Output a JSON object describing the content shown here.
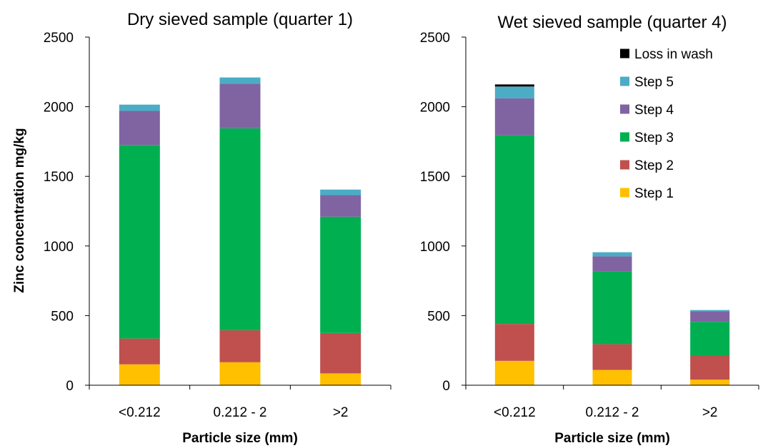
{
  "y_axis_label": "Zinc concentration mg/kg",
  "colors": {
    "Step 1": "#ffc000",
    "Step 2": "#c0504d",
    "Step 3": "#00b050",
    "Step 4": "#8064a2",
    "Step 5": "#4bacc6",
    "Loss in wash": "#000000"
  },
  "chart_data": [
    {
      "type": "bar",
      "stacked": true,
      "title": "Dry sieved sample (quarter 1)",
      "xlabel": "Particle size (mm)",
      "ylabel": "Zinc concentration mg/kg",
      "ylim": [
        0,
        2500
      ],
      "yticks": [
        0,
        500,
        1000,
        1500,
        2000,
        2500
      ],
      "categories": [
        "<0.212",
        "0.212 - 2",
        ">2"
      ],
      "series": [
        {
          "name": "Step 1",
          "values": [
            150,
            165,
            85
          ]
        },
        {
          "name": "Step 2",
          "values": [
            185,
            230,
            290
          ]
        },
        {
          "name": "Step 3",
          "values": [
            1390,
            1450,
            835
          ]
        },
        {
          "name": "Step 4",
          "values": [
            245,
            320,
            155
          ]
        },
        {
          "name": "Step 5",
          "values": [
            45,
            45,
            40
          ]
        }
      ]
    },
    {
      "type": "bar",
      "stacked": true,
      "title": "Wet sieved sample (quarter 4)",
      "xlabel": "Particle size (mm)",
      "ylabel": "",
      "ylim": [
        0,
        2500
      ],
      "yticks": [
        0,
        500,
        1000,
        1500,
        2000,
        2500
      ],
      "categories": [
        "<0.212",
        "0.212 - 2",
        ">2"
      ],
      "series": [
        {
          "name": "Step 1",
          "values": [
            175,
            110,
            40
          ]
        },
        {
          "name": "Step 2",
          "values": [
            265,
            185,
            170
          ]
        },
        {
          "name": "Step 3",
          "values": [
            1355,
            520,
            245
          ]
        },
        {
          "name": "Step 4",
          "values": [
            265,
            110,
            75
          ]
        },
        {
          "name": "Step 5",
          "values": [
            85,
            30,
            10
          ]
        },
        {
          "name": "Loss in wash",
          "values": [
            15,
            0,
            0
          ]
        }
      ],
      "legend": {
        "position": "top-right",
        "order": [
          "Loss in wash",
          "Step 5",
          "Step 4",
          "Step 3",
          "Step 2",
          "Step 1"
        ]
      }
    }
  ]
}
